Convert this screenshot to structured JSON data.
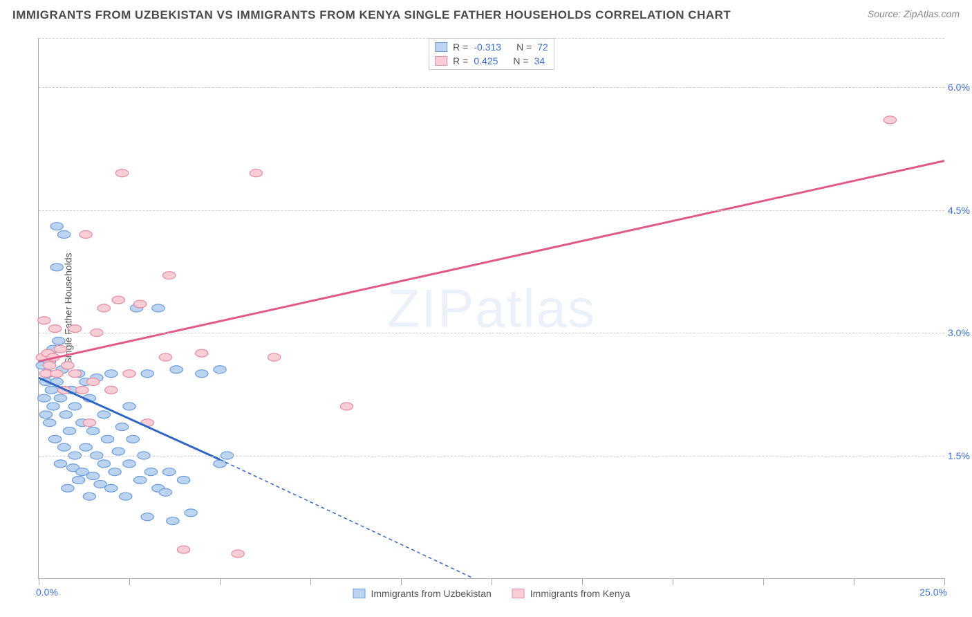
{
  "title": "IMMIGRANTS FROM UZBEKISTAN VS IMMIGRANTS FROM KENYA SINGLE FATHER HOUSEHOLDS CORRELATION CHART",
  "source": "Source: ZipAtlas.com",
  "ylabel": "Single Father Households",
  "watermark_bold": "ZIP",
  "watermark_thin": "atlas",
  "chart": {
    "type": "scatter",
    "xlim": [
      0,
      25
    ],
    "ylim": [
      0,
      6.6
    ],
    "x_ticks": [
      0,
      2.5,
      5,
      7.5,
      10,
      12.5,
      15,
      17.5,
      20,
      22.5,
      25
    ],
    "x_lim_labels": {
      "min": "0.0%",
      "max": "25.0%"
    },
    "y_ticks": [
      1.5,
      3.0,
      4.5,
      6.0
    ],
    "y_tick_labels": [
      "1.5%",
      "3.0%",
      "4.5%",
      "6.0%"
    ],
    "gridline_color": "#d0d0d0",
    "background_color": "#ffffff",
    "series": [
      {
        "name": "Immigrants from Uzbekistan",
        "marker_fill": "#bcd4f0",
        "marker_stroke": "#6a9de0",
        "marker_radius": 8,
        "line_color": "#2f66c4",
        "line_width": 3,
        "R": "-0.313",
        "N": "72",
        "trend_solid": {
          "x1": 0.0,
          "y1": 2.45,
          "x2": 5.0,
          "y2": 1.45
        },
        "trend_dash": {
          "x1": 5.0,
          "y1": 1.45,
          "x2": 12.0,
          "y2": 0.0
        },
        "points": [
          [
            0.1,
            2.6
          ],
          [
            0.15,
            2.2
          ],
          [
            0.2,
            2.4
          ],
          [
            0.2,
            2.0
          ],
          [
            0.25,
            2.5
          ],
          [
            0.3,
            1.9
          ],
          [
            0.3,
            2.65
          ],
          [
            0.35,
            2.3
          ],
          [
            0.4,
            2.1
          ],
          [
            0.4,
            2.8
          ],
          [
            0.45,
            1.7
          ],
          [
            0.5,
            2.4
          ],
          [
            0.5,
            4.3
          ],
          [
            0.5,
            3.8
          ],
          [
            0.55,
            2.9
          ],
          [
            0.6,
            1.4
          ],
          [
            0.6,
            2.2
          ],
          [
            0.65,
            2.55
          ],
          [
            0.7,
            1.6
          ],
          [
            0.7,
            4.2
          ],
          [
            0.75,
            2.0
          ],
          [
            0.8,
            1.1
          ],
          [
            0.8,
            2.6
          ],
          [
            0.85,
            1.8
          ],
          [
            0.9,
            2.3
          ],
          [
            0.95,
            1.35
          ],
          [
            1.0,
            2.1
          ],
          [
            1.0,
            1.5
          ],
          [
            1.1,
            1.2
          ],
          [
            1.1,
            2.5
          ],
          [
            1.2,
            1.9
          ],
          [
            1.2,
            1.3
          ],
          [
            1.3,
            2.4
          ],
          [
            1.3,
            1.6
          ],
          [
            1.4,
            1.0
          ],
          [
            1.4,
            2.2
          ],
          [
            1.5,
            1.8
          ],
          [
            1.5,
            1.25
          ],
          [
            1.6,
            2.45
          ],
          [
            1.6,
            1.5
          ],
          [
            1.7,
            1.15
          ],
          [
            1.8,
            2.0
          ],
          [
            1.8,
            1.4
          ],
          [
            1.9,
            1.7
          ],
          [
            2.0,
            1.1
          ],
          [
            2.0,
            2.5
          ],
          [
            2.1,
            1.3
          ],
          [
            2.2,
            3.4
          ],
          [
            2.2,
            1.55
          ],
          [
            2.3,
            1.85
          ],
          [
            2.4,
            1.0
          ],
          [
            2.5,
            2.1
          ],
          [
            2.5,
            1.4
          ],
          [
            2.6,
            1.7
          ],
          [
            2.7,
            3.3
          ],
          [
            2.8,
            1.2
          ],
          [
            2.9,
            1.5
          ],
          [
            3.0,
            0.75
          ],
          [
            3.0,
            2.5
          ],
          [
            3.1,
            1.3
          ],
          [
            3.3,
            1.1
          ],
          [
            3.3,
            3.3
          ],
          [
            3.5,
            1.05
          ],
          [
            3.6,
            1.3
          ],
          [
            3.7,
            0.7
          ],
          [
            3.8,
            2.55
          ],
          [
            4.0,
            1.2
          ],
          [
            4.2,
            0.8
          ],
          [
            4.5,
            2.5
          ],
          [
            5.0,
            1.4
          ],
          [
            5.0,
            2.55
          ],
          [
            5.2,
            1.5
          ]
        ]
      },
      {
        "name": "Immigrants from Kenya",
        "marker_fill": "#f7cdd6",
        "marker_stroke": "#e88ba0",
        "marker_radius": 8,
        "line_color": "#e05a85",
        "line_width": 3,
        "R": "0.425",
        "N": "34",
        "trend_solid": {
          "x1": 0.0,
          "y1": 2.65,
          "x2": 25.0,
          "y2": 5.1
        },
        "trend_dash": null,
        "points": [
          [
            0.1,
            2.7
          ],
          [
            0.15,
            3.15
          ],
          [
            0.2,
            2.5
          ],
          [
            0.25,
            2.75
          ],
          [
            0.3,
            2.6
          ],
          [
            0.4,
            2.7
          ],
          [
            0.45,
            3.05
          ],
          [
            0.5,
            2.5
          ],
          [
            0.6,
            2.8
          ],
          [
            0.7,
            2.3
          ],
          [
            0.8,
            2.6
          ],
          [
            1.0,
            2.5
          ],
          [
            1.0,
            3.05
          ],
          [
            1.2,
            2.3
          ],
          [
            1.3,
            4.2
          ],
          [
            1.4,
            1.9
          ],
          [
            1.5,
            2.4
          ],
          [
            1.6,
            3.0
          ],
          [
            1.8,
            3.3
          ],
          [
            2.0,
            2.3
          ],
          [
            2.2,
            3.4
          ],
          [
            2.3,
            4.95
          ],
          [
            2.5,
            2.5
          ],
          [
            2.8,
            3.35
          ],
          [
            3.0,
            1.9
          ],
          [
            3.5,
            2.7
          ],
          [
            3.6,
            3.7
          ],
          [
            4.0,
            0.35
          ],
          [
            4.5,
            2.75
          ],
          [
            5.5,
            0.3
          ],
          [
            6.0,
            4.95
          ],
          [
            6.5,
            2.7
          ],
          [
            8.5,
            2.1
          ],
          [
            23.5,
            5.6
          ]
        ]
      }
    ]
  },
  "legend_top": {
    "R_label": "R =",
    "N_label": "N ="
  }
}
